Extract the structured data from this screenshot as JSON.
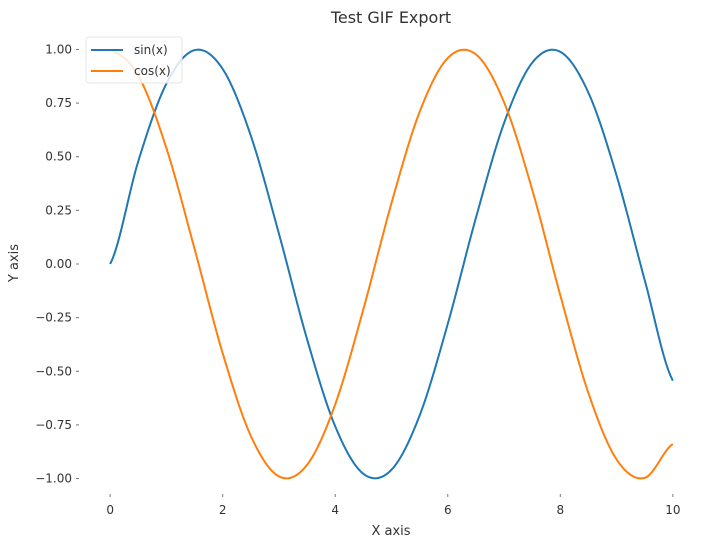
{
  "chart_data": {
    "type": "line",
    "title": "Test GIF Export",
    "xlabel": "X axis",
    "ylabel": "Y axis",
    "xlim": [
      -0.5,
      10.5
    ],
    "ylim": [
      -1.1,
      1.1
    ],
    "xticks": [
      0,
      2,
      4,
      6,
      8,
      10
    ],
    "xtick_labels": [
      "0",
      "2",
      "4",
      "6",
      "8",
      "10"
    ],
    "yticks": [
      1.0,
      0.75,
      0.5,
      0.25,
      0.0,
      -0.25,
      -0.5,
      -0.75,
      -1.0
    ],
    "ytick_labels": [
      "1.00",
      "0.75",
      "0.50",
      "0.25",
      "0.00",
      "−0.25",
      "−0.50",
      "−0.75",
      "−1.00"
    ],
    "grid": false,
    "legend_position": "top-left",
    "x": [
      0.0,
      0.5,
      1.0,
      1.5,
      2.0,
      2.5,
      3.0,
      3.5,
      4.0,
      4.5,
      5.0,
      5.5,
      6.0,
      6.5,
      7.0,
      7.5,
      8.0,
      8.5,
      9.0,
      9.5,
      10.0
    ],
    "series": [
      {
        "name": "sin(x)",
        "color": "#1f77b4",
        "values": [
          0.0,
          0.479,
          0.841,
          0.997,
          0.909,
          0.598,
          0.141,
          -0.351,
          -0.757,
          -0.978,
          -0.959,
          -0.706,
          -0.279,
          0.215,
          0.657,
          0.938,
          0.989,
          0.798,
          0.412,
          -0.075,
          -0.544
        ]
      },
      {
        "name": "cos(x)",
        "color": "#ff7f0e",
        "values": [
          1.0,
          0.878,
          0.54,
          0.071,
          -0.416,
          -0.801,
          -0.99,
          -0.936,
          -0.654,
          -0.211,
          0.284,
          0.709,
          0.96,
          0.977,
          0.754,
          0.347,
          -0.146,
          -0.602,
          -0.911,
          -0.997,
          -0.839
        ]
      }
    ]
  }
}
